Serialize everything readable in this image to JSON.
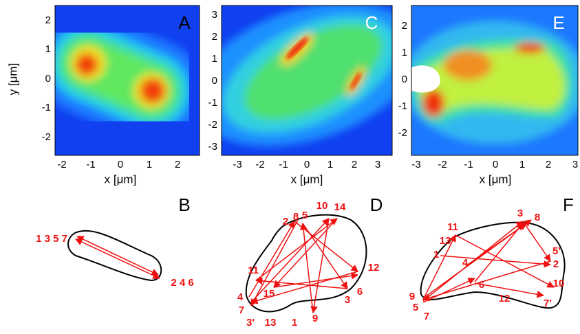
{
  "panels": [
    {
      "label": "A",
      "x_label": "x [μm]",
      "y_label": "y [μm]",
      "x_ticks": [
        "-2",
        "-1",
        "0",
        "1",
        "2"
      ],
      "y_ticks": [
        "2",
        "1",
        "0",
        "-1",
        "-2"
      ]
    },
    {
      "label": "C",
      "x_label": "x [μm]",
      "x_ticks": [
        "-3",
        "-2",
        "-1",
        "0",
        "1",
        "2",
        "3"
      ],
      "y_ticks": [
        "3",
        "2",
        "1",
        "0",
        "-1",
        "-2",
        "-3"
      ]
    },
    {
      "label": "E",
      "x_label": "x [μm]",
      "x_ticks": [
        "-3",
        "-2",
        "-1",
        "0",
        "1",
        "2",
        "3"
      ],
      "y_ticks": [
        "2",
        "1",
        "0",
        "-1",
        "-2"
      ]
    }
  ],
  "diagrams": [
    {
      "label": "B",
      "nodes": [
        "1 3 5 7",
        "2 4 6"
      ]
    },
    {
      "label": "D",
      "nodes": [
        "2",
        "8",
        "5",
        "10",
        "14",
        "11",
        "15",
        "4",
        "7",
        "3'",
        "13",
        "1",
        "9",
        "3",
        "6",
        "12"
      ]
    },
    {
      "label": "F",
      "nodes": [
        "3",
        "8",
        "11",
        "13",
        "1",
        "4",
        "6",
        "12",
        "10",
        "7'",
        "5'",
        "2",
        "9",
        "5",
        "7"
      ]
    }
  ]
}
